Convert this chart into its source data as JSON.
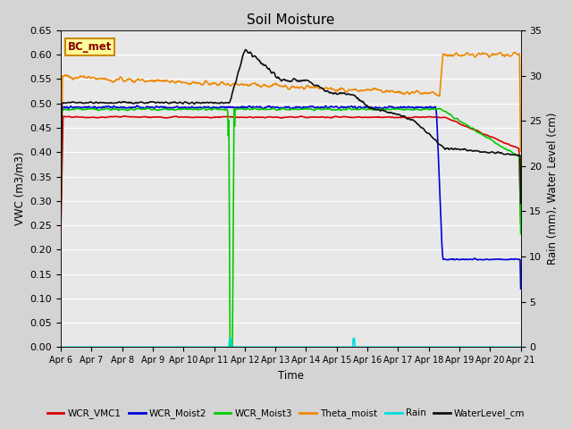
{
  "title": "Soil Moisture",
  "xlabel": "Time",
  "ylabel_left": "VWC (m3/m3)",
  "ylabel_right": "Rain (mm), Water Level (cm)",
  "annotation_text": "BC_met",
  "ylim_left": [
    0.0,
    0.65
  ],
  "ylim_right": [
    0,
    35
  ],
  "yticks_left": [
    0.0,
    0.05,
    0.1,
    0.15,
    0.2,
    0.25,
    0.3,
    0.35,
    0.4,
    0.45,
    0.5,
    0.55,
    0.6,
    0.65
  ],
  "yticks_right": [
    0,
    5,
    10,
    15,
    20,
    25,
    30,
    35
  ],
  "bg_color": "#d4d4d4",
  "plot_bg": "#e8e8e8",
  "series_colors": {
    "WCR_VMC1": "#dd0000",
    "WCR_Moist2": "#0000dd",
    "WCR_Moist3": "#00cc00",
    "Theta_moist": "#ee8800",
    "Rain": "#00dddd",
    "WaterLevel_cm": "#111111"
  },
  "lw": 1.2,
  "x_labels": [
    "Apr 6",
    "Apr 7",
    "Apr 8",
    "Apr 9",
    "Apr 10",
    "Apr 11",
    "Apr 12",
    "Apr 13",
    "Apr 14",
    "Apr 15",
    "Apr 16",
    "Apr 17",
    "Apr 18",
    "Apr 19",
    "Apr 20",
    "Apr 21"
  ]
}
